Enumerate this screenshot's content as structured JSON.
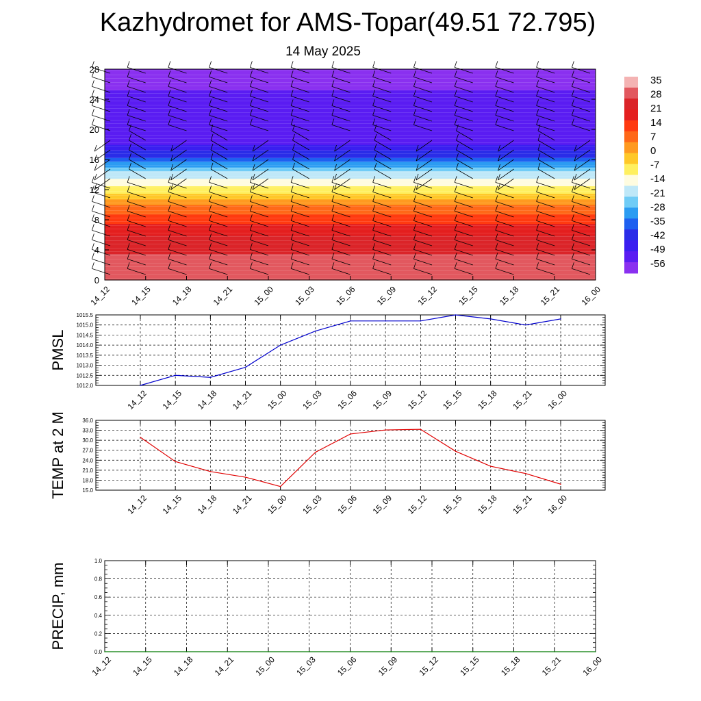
{
  "header": {
    "title": "Kazhydromet for AMS-Topar(49.51 72.795)",
    "subtitle": "14 May 2025"
  },
  "chart_data": [
    {
      "type": "heatmap",
      "description_role": "vertical temperature cross-section with wind barbs",
      "y_range": [
        0,
        28
      ],
      "y_ticks": [
        "0",
        "4",
        "8",
        "12",
        "16",
        "20",
        "24",
        "28"
      ],
      "x_ticks": [
        "14_12",
        "14_15",
        "14_18",
        "14_21",
        "15_00",
        "15_03",
        "15_06",
        "15_09",
        "15_12",
        "15_15",
        "15_18",
        "15_21",
        "16_00"
      ],
      "levels_temperature": [
        {
          "level": 0,
          "value": 32
        },
        {
          "level": 2,
          "value": 30
        },
        {
          "level": 4,
          "value": 26
        },
        {
          "level": 6,
          "value": 21
        },
        {
          "level": 8,
          "value": 14
        },
        {
          "level": 10,
          "value": 4
        },
        {
          "level": 12,
          "value": -10
        },
        {
          "level": 13,
          "value": -14
        },
        {
          "level": 14.5,
          "value": -24
        },
        {
          "level": 16,
          "value": -38
        },
        {
          "level": 17,
          "value": -45
        },
        {
          "level": 18,
          "value": -52
        },
        {
          "level": 20,
          "value": -56
        },
        {
          "level": 22,
          "value": -56
        },
        {
          "level": 24,
          "value": -54
        },
        {
          "level": 26,
          "value": -60
        },
        {
          "level": 28,
          "value": -62
        }
      ],
      "colorbar": {
        "labels": [
          "35",
          "28",
          "21",
          "14",
          "7",
          "0",
          "-7",
          "-14",
          "-21",
          "-28",
          "-35",
          "-42",
          "-49",
          "-56"
        ],
        "colors": [
          "#f4b3b3",
          "#e2585f",
          "#db2429",
          "#e41f1f",
          "#ff3a10",
          "#ff6818",
          "#ff9a20",
          "#ffc828",
          "#fff060",
          "#fffce0",
          "#bfe8f8",
          "#70ccf6",
          "#2c9cf2",
          "#1e60f0",
          "#2a2ce8",
          "#3a1ef0",
          "#5a1cf2",
          "#8a30f0"
        ]
      }
    },
    {
      "type": "line",
      "ylabel": "PMSL",
      "ylim": [
        1012.0,
        1015.5
      ],
      "y_ticks": [
        "1012.0",
        "1012.5",
        "1013.0",
        "1013.5",
        "1014.0",
        "1014.5",
        "1015.0",
        "1015.5"
      ],
      "x_ticks": [
        "14_12",
        "14_15",
        "14_18",
        "14_21",
        "15_00",
        "15_03",
        "15_06",
        "15_09",
        "15_12",
        "15_15",
        "15_18",
        "15_21",
        "16_00"
      ],
      "values": [
        1012.0,
        1012.5,
        1012.4,
        1012.9,
        1014.0,
        1014.7,
        1015.2,
        1015.2,
        1015.2,
        1015.5,
        1015.3,
        1015.0,
        1015.3
      ],
      "color": "#0000cc"
    },
    {
      "type": "line",
      "ylabel": "TEMP at 2 M",
      "ylim": [
        15.0,
        36.0
      ],
      "y_ticks": [
        "15.0",
        "18.0",
        "21.0",
        "24.0",
        "27.0",
        "30.0",
        "33.0",
        "36.0"
      ],
      "x_ticks": [
        "14_12",
        "14_15",
        "14_18",
        "14_21",
        "15_00",
        "15_03",
        "15_06",
        "15_09",
        "15_12",
        "15_15",
        "15_18",
        "15_21",
        "16_00"
      ],
      "values": [
        30.9,
        23.6,
        20.6,
        18.9,
        16.1,
        26.4,
        31.9,
        33.1,
        33.3,
        26.7,
        22.2,
        20.0,
        16.8
      ],
      "color": "#e00000"
    },
    {
      "type": "line",
      "ylabel": "PRECIP, mm",
      "ylim": [
        0.0,
        1.0
      ],
      "y_ticks": [
        "0.0",
        "0.2",
        "0.4",
        "0.6",
        "0.8",
        "1.0"
      ],
      "x_ticks": [
        "14_12",
        "14_15",
        "14_18",
        "14_21",
        "15_00",
        "15_03",
        "15_06",
        "15_09",
        "15_12",
        "15_15",
        "15_18",
        "15_21",
        "16_00"
      ],
      "values": [
        0,
        0,
        0,
        0,
        0,
        0,
        0,
        0,
        0,
        0,
        0,
        0,
        0
      ],
      "color": "#007a00"
    }
  ]
}
